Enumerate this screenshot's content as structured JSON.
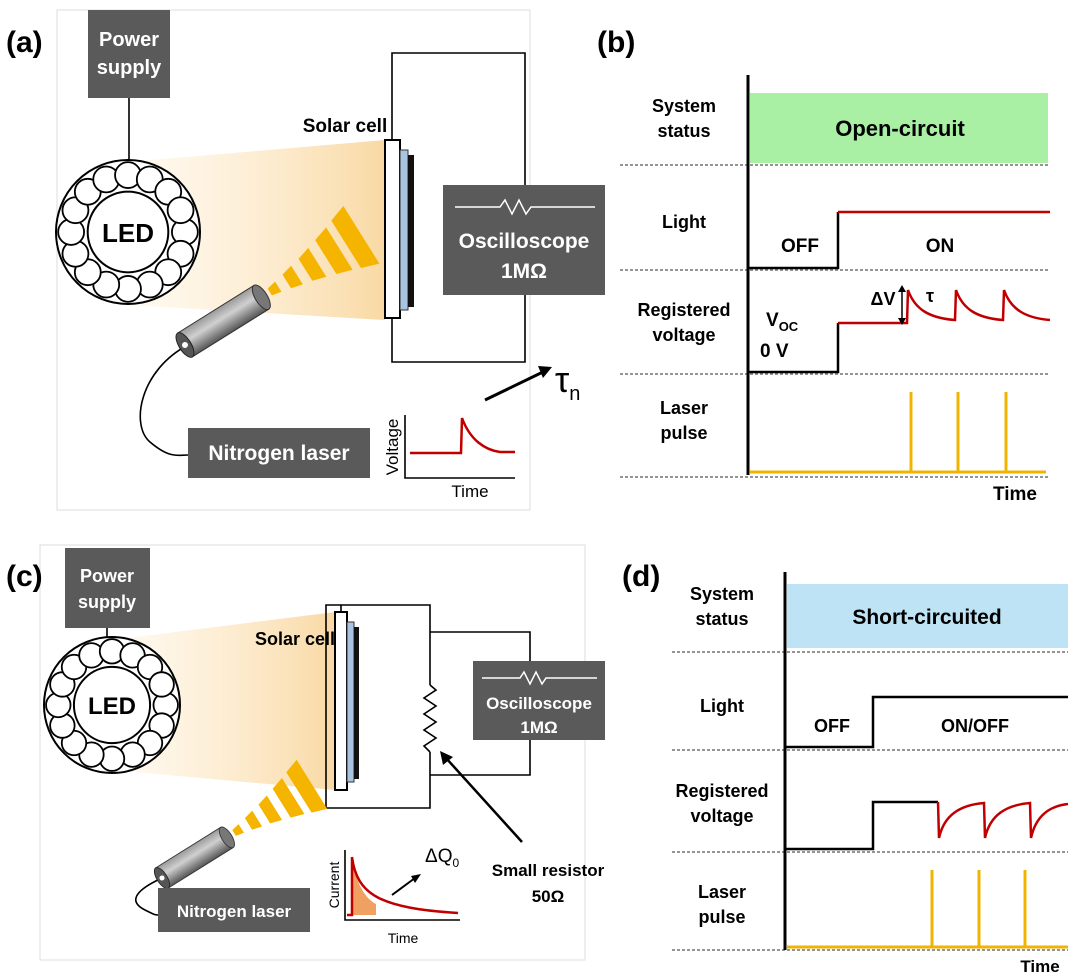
{
  "panel_a": {
    "label": "(a)",
    "power_supply": [
      "Power",
      "supply"
    ],
    "led": "LED",
    "solar_cell": "Solar cell",
    "oscilloscope": [
      "Oscilloscope",
      "1MΩ"
    ],
    "laser": "Nitrogen laser",
    "inset": {
      "y_label": "Voltage",
      "x_label": "Time",
      "symbol": "τ",
      "symbol_sub": "n"
    }
  },
  "panel_b": {
    "label": "(b)",
    "rows": [
      [
        "System",
        "status"
      ],
      [
        "Light"
      ],
      [
        "Registered",
        "voltage"
      ],
      [
        "Laser",
        "pulse"
      ]
    ],
    "status": "Open-circuit",
    "light_off": "OFF",
    "light_on": "ON",
    "delta_v": "ΔV",
    "tau": "τ",
    "voc": "V",
    "voc_sub": "OC",
    "zero": "0 V",
    "time": "Time"
  },
  "panel_c": {
    "label": "(c)",
    "power_supply": [
      "Power",
      "supply"
    ],
    "led": "LED",
    "solar_cell": "Solar cell",
    "oscilloscope": [
      "Oscilloscope",
      "1MΩ"
    ],
    "resistor": [
      "Small resistor",
      "50Ω"
    ],
    "laser": "Nitrogen laser",
    "inset": {
      "y_label": "Current",
      "x_label": "Time",
      "symbol": "ΔQ",
      "symbol_sub": "0"
    }
  },
  "panel_d": {
    "label": "(d)",
    "rows": [
      [
        "System",
        "status"
      ],
      [
        "Light"
      ],
      [
        "Registered",
        "voltage"
      ],
      [
        "Laser",
        "pulse"
      ]
    ],
    "status": "Short-circuited",
    "light_off": "OFF",
    "light_on": "ON/OFF",
    "time": "Time"
  }
}
